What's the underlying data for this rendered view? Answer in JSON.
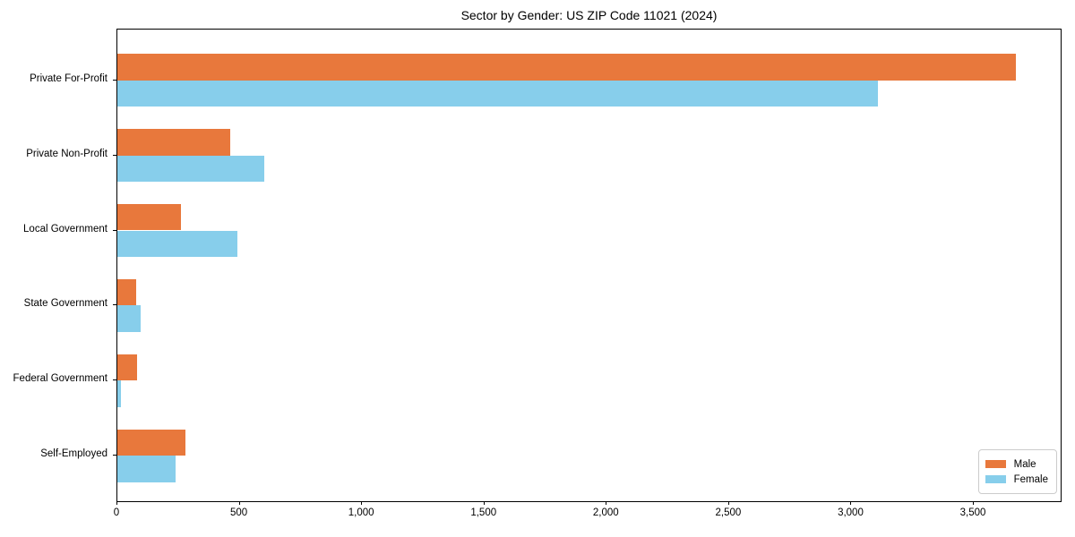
{
  "chart_data": {
    "type": "bar",
    "orientation": "horizontal",
    "title": "Sector by Gender: US ZIP Code 11021 (2024)",
    "categories": [
      "Private For-Profit",
      "Private Non-Profit",
      "Local Government",
      "State Government",
      "Federal Government",
      "Self-Employed"
    ],
    "series": [
      {
        "name": "Male",
        "color": "#e8783c",
        "values": [
          3673,
          460,
          260,
          77,
          79,
          277
        ]
      },
      {
        "name": "Female",
        "color": "#87ceeb",
        "values": [
          3108,
          600,
          490,
          95,
          15,
          237
        ]
      }
    ],
    "xlabel": "",
    "ylabel": "",
    "xlim": [
      0,
      3855
    ],
    "xticks": [
      0,
      500,
      1000,
      1500,
      2000,
      2500,
      3000,
      3500
    ],
    "xtick_labels": [
      "0",
      "500",
      "1,000",
      "1,500",
      "2,000",
      "2,500",
      "3,000",
      "3,500"
    ],
    "grid": false,
    "legend_position": "lower right",
    "background_color": "#ffffff",
    "axis_color": "#000000"
  }
}
